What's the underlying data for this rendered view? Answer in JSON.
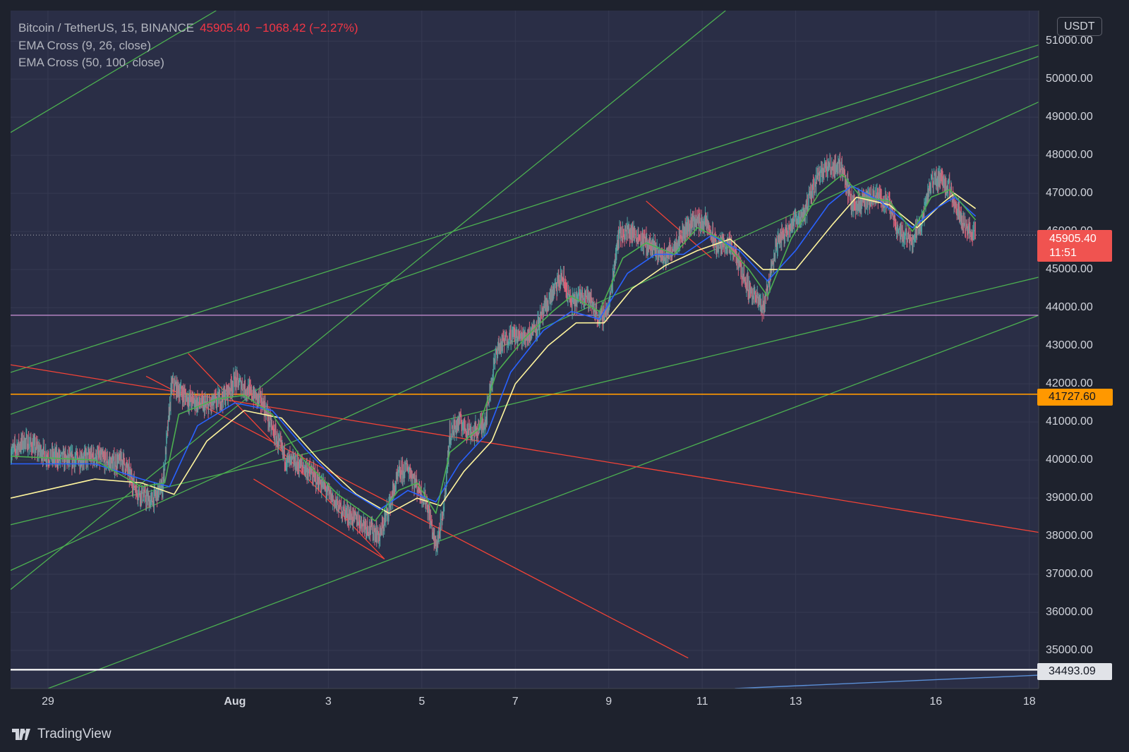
{
  "legend": {
    "symbol": "Bitcoin / TetherUS, 15, BINANCE",
    "price": "45905.40",
    "change": "−1068.42 (−2.27%)",
    "ema1": "EMA Cross (9, 26, close)",
    "ema2": "EMA Cross (50, 100, close)"
  },
  "currency": "USDT",
  "price_tag": {
    "value": "45905.40",
    "countdown": "11:51"
  },
  "orange_tag": "41727.60",
  "white_tag": "34493.09",
  "brand": "TradingView",
  "colors": {
    "background": "#1e222d",
    "plot_background": "#2a2e46",
    "grid": "#363a52",
    "green_line": "#4caf50",
    "red_line": "#f44336",
    "orange_line": "#ff9800",
    "purple_line": "#ce93d8",
    "ema_fast": "#4caf50",
    "ema_slow": "#2962ff",
    "ema_long": "#fff59d"
  },
  "chart_data": {
    "type": "candlestick",
    "title": "Bitcoin / TetherUS, 15, BINANCE",
    "y_axis": {
      "ticks": [
        "35000.00",
        "36000.00",
        "37000.00",
        "38000.00",
        "39000.00",
        "40000.00",
        "41000.00",
        "42000.00",
        "43000.00",
        "44000.00",
        "45000.00",
        "46000.00",
        "47000.00",
        "48000.00",
        "49000.00",
        "50000.00",
        "51000.00"
      ],
      "range": [
        34000,
        51800
      ]
    },
    "x_axis": {
      "ticks": [
        {
          "label": "29",
          "day": -3
        },
        {
          "label": "Aug",
          "day": 1
        },
        {
          "label": "3",
          "day": 3
        },
        {
          "label": "5",
          "day": 5
        },
        {
          "label": "7",
          "day": 7
        },
        {
          "label": "9",
          "day": 9
        },
        {
          "label": "11",
          "day": 11
        },
        {
          "label": "13",
          "day": 13
        },
        {
          "label": "16",
          "day": 16
        },
        {
          "label": "18",
          "day": 18
        }
      ],
      "range_days": [
        -3.8,
        18.2
      ]
    },
    "price_path": [
      [
        -3.8,
        40200
      ],
      [
        -3.5,
        40500
      ],
      [
        -3.0,
        40100
      ],
      [
        -2.5,
        40000
      ],
      [
        -2.0,
        40100
      ],
      [
        -1.6,
        39900
      ],
      [
        -1.4,
        40000
      ],
      [
        -1.1,
        39200
      ],
      [
        -0.8,
        38900
      ],
      [
        -0.55,
        39300
      ],
      [
        -0.35,
        42000
      ],
      [
        0.0,
        41600
      ],
      [
        0.4,
        41400
      ],
      [
        0.8,
        41700
      ],
      [
        1.0,
        42100
      ],
      [
        1.3,
        41800
      ],
      [
        1.6,
        41500
      ],
      [
        1.8,
        40800
      ],
      [
        2.1,
        40000
      ],
      [
        2.5,
        39800
      ],
      [
        2.9,
        39300
      ],
      [
        3.2,
        38800
      ],
      [
        3.5,
        38500
      ],
      [
        3.8,
        38300
      ],
      [
        4.1,
        38000
      ],
      [
        4.3,
        38800
      ],
      [
        4.5,
        39600
      ],
      [
        4.7,
        39800
      ],
      [
        4.9,
        39300
      ],
      [
        5.1,
        38900
      ],
      [
        5.3,
        37700
      ],
      [
        5.45,
        38500
      ],
      [
        5.6,
        40700
      ],
      [
        5.8,
        41000
      ],
      [
        6.1,
        40700
      ],
      [
        6.35,
        41000
      ],
      [
        6.6,
        42900
      ],
      [
        6.9,
        43300
      ],
      [
        7.2,
        43200
      ],
      [
        7.5,
        43600
      ],
      [
        7.8,
        44400
      ],
      [
        8.0,
        44800
      ],
      [
        8.2,
        44100
      ],
      [
        8.5,
        44400
      ],
      [
        8.8,
        43700
      ],
      [
        9.0,
        44000
      ],
      [
        9.2,
        45900
      ],
      [
        9.4,
        46000
      ],
      [
        9.6,
        45900
      ],
      [
        9.9,
        45600
      ],
      [
        10.2,
        45300
      ],
      [
        10.5,
        45800
      ],
      [
        10.8,
        46300
      ],
      [
        11.1,
        46200
      ],
      [
        11.3,
        45600
      ],
      [
        11.5,
        45700
      ],
      [
        11.7,
        45400
      ],
      [
        12.0,
        44500
      ],
      [
        12.3,
        44000
      ],
      [
        12.6,
        45700
      ],
      [
        12.9,
        46200
      ],
      [
        13.2,
        46500
      ],
      [
        13.5,
        47600
      ],
      [
        13.8,
        47700
      ],
      [
        14.0,
        47700
      ],
      [
        14.2,
        46700
      ],
      [
        14.5,
        46800
      ],
      [
        14.8,
        46900
      ],
      [
        15.0,
        46700
      ],
      [
        15.2,
        46000
      ],
      [
        15.5,
        45800
      ],
      [
        15.7,
        46300
      ],
      [
        15.9,
        47300
      ],
      [
        16.1,
        47400
      ],
      [
        16.3,
        47100
      ],
      [
        16.5,
        46500
      ],
      [
        16.7,
        46000
      ],
      [
        16.85,
        45900
      ]
    ],
    "ema_fast": [
      [
        -3.8,
        40100
      ],
      [
        -2.0,
        40000
      ],
      [
        -1.0,
        39300
      ],
      [
        -0.5,
        39400
      ],
      [
        -0.2,
        41200
      ],
      [
        0.6,
        41600
      ],
      [
        1.2,
        41700
      ],
      [
        1.8,
        41200
      ],
      [
        2.4,
        40100
      ],
      [
        3.2,
        39100
      ],
      [
        4.0,
        38400
      ],
      [
        4.5,
        39200
      ],
      [
        4.9,
        39400
      ],
      [
        5.3,
        38600
      ],
      [
        5.6,
        40200
      ],
      [
        6.2,
        40800
      ],
      [
        6.6,
        42300
      ],
      [
        7.2,
        43200
      ],
      [
        7.8,
        43900
      ],
      [
        8.2,
        44300
      ],
      [
        8.8,
        43900
      ],
      [
        9.3,
        45300
      ],
      [
        9.8,
        45700
      ],
      [
        10.4,
        45400
      ],
      [
        10.9,
        46100
      ],
      [
        11.4,
        45800
      ],
      [
        12.0,
        45000
      ],
      [
        12.4,
        44300
      ],
      [
        12.9,
        45800
      ],
      [
        13.5,
        47000
      ],
      [
        14.0,
        47500
      ],
      [
        14.4,
        46900
      ],
      [
        15.0,
        46800
      ],
      [
        15.5,
        46000
      ],
      [
        15.9,
        46900
      ],
      [
        16.3,
        47100
      ],
      [
        16.85,
        46300
      ]
    ],
    "ema_slow": [
      [
        -3.8,
        39900
      ],
      [
        -2.0,
        39900
      ],
      [
        -1.0,
        39500
      ],
      [
        -0.4,
        39300
      ],
      [
        0.2,
        40900
      ],
      [
        1.0,
        41500
      ],
      [
        1.8,
        41300
      ],
      [
        2.5,
        40300
      ],
      [
        3.3,
        39300
      ],
      [
        4.1,
        38700
      ],
      [
        4.7,
        39200
      ],
      [
        5.3,
        38900
      ],
      [
        5.8,
        39900
      ],
      [
        6.4,
        40700
      ],
      [
        6.9,
        42300
      ],
      [
        7.6,
        43400
      ],
      [
        8.2,
        43900
      ],
      [
        8.8,
        43700
      ],
      [
        9.4,
        44900
      ],
      [
        10.0,
        45400
      ],
      [
        10.6,
        45400
      ],
      [
        11.2,
        45900
      ],
      [
        11.8,
        45500
      ],
      [
        12.4,
        44700
      ],
      [
        13.0,
        45500
      ],
      [
        13.7,
        46700
      ],
      [
        14.2,
        47200
      ],
      [
        14.8,
        46800
      ],
      [
        15.5,
        46100
      ],
      [
        16.0,
        46600
      ],
      [
        16.4,
        46900
      ],
      [
        16.85,
        46400
      ]
    ],
    "ema_long": [
      [
        -3.8,
        39000
      ],
      [
        -2.0,
        39500
      ],
      [
        -1.0,
        39400
      ],
      [
        -0.3,
        39100
      ],
      [
        0.4,
        40500
      ],
      [
        1.2,
        41300
      ],
      [
        2.0,
        41100
      ],
      [
        2.8,
        40000
      ],
      [
        3.6,
        39100
      ],
      [
        4.3,
        38600
      ],
      [
        4.9,
        39000
      ],
      [
        5.4,
        38800
      ],
      [
        5.9,
        39700
      ],
      [
        6.5,
        40500
      ],
      [
        7.0,
        42000
      ],
      [
        7.7,
        43000
      ],
      [
        8.3,
        43600
      ],
      [
        8.9,
        43600
      ],
      [
        9.5,
        44500
      ],
      [
        10.2,
        45100
      ],
      [
        10.9,
        45500
      ],
      [
        11.6,
        45800
      ],
      [
        12.3,
        45000
      ],
      [
        13.0,
        45000
      ],
      [
        13.8,
        46200
      ],
      [
        14.3,
        46900
      ],
      [
        15.0,
        46700
      ],
      [
        15.6,
        46100
      ],
      [
        16.1,
        46700
      ],
      [
        16.4,
        47000
      ],
      [
        16.85,
        46600
      ]
    ],
    "trend_lines": [
      {
        "color": "green",
        "p1": [
          -3.8,
          48600
        ],
        "p2": [
          0.6,
          51800
        ]
      },
      {
        "color": "green",
        "p1": [
          -3.8,
          36600
        ],
        "p2": [
          11.5,
          51800
        ]
      },
      {
        "color": "green",
        "p1": [
          -3.8,
          42300
        ],
        "p2": [
          18.2,
          50900
        ]
      },
      {
        "color": "green",
        "p1": [
          -3.8,
          41200
        ],
        "p2": [
          18.2,
          50600
        ]
      },
      {
        "color": "green",
        "p1": [
          -3.8,
          37100
        ],
        "p2": [
          18.2,
          49400
        ]
      },
      {
        "color": "green",
        "p1": [
          -3.8,
          38300
        ],
        "p2": [
          18.2,
          44800
        ]
      },
      {
        "color": "green",
        "p1": [
          -3.0,
          34000
        ],
        "p2": [
          18.2,
          43800
        ]
      },
      {
        "color": "red",
        "p1": [
          -3.8,
          42500
        ],
        "p2": [
          18.2,
          38100
        ]
      },
      {
        "color": "red",
        "p1": [
          -0.9,
          42200
        ],
        "p2": [
          10.7,
          34800
        ]
      },
      {
        "color": "red",
        "p1": [
          0.0,
          42800
        ],
        "p2": [
          4.2,
          37400
        ]
      },
      {
        "color": "red",
        "p1": [
          1.4,
          39500
        ],
        "p2": [
          4.2,
          37400
        ]
      },
      {
        "color": "red",
        "p1": [
          9.8,
          46800
        ],
        "p2": [
          11.2,
          45300
        ]
      }
    ],
    "horizontal_lines": [
      {
        "color": "purple",
        "value": 43800
      },
      {
        "color": "orange",
        "value": 41727.6
      },
      {
        "color": "white",
        "value": 34493.09
      },
      {
        "color": "price",
        "value": 45905.4
      }
    ]
  }
}
